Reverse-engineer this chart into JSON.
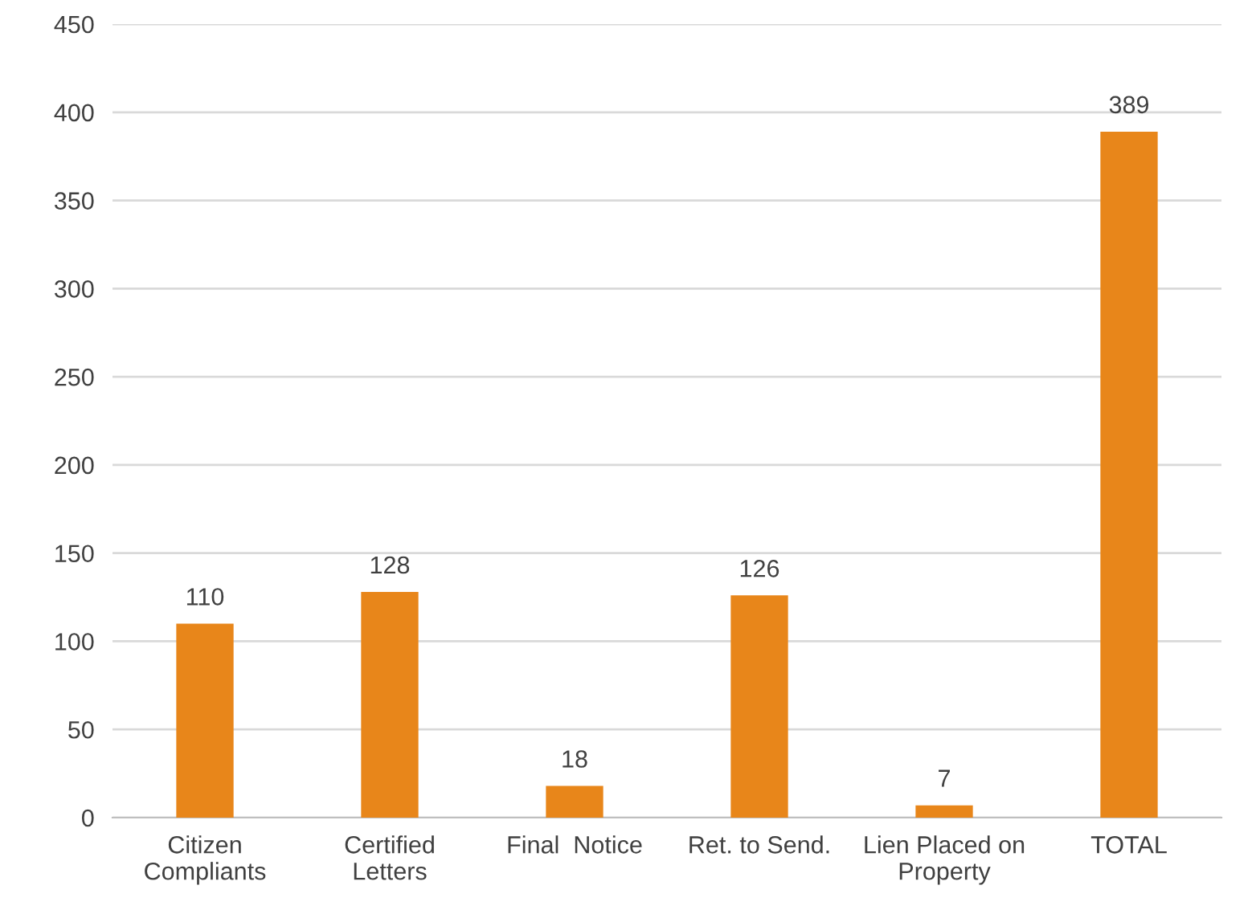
{
  "chart_data": {
    "type": "bar",
    "categories": [
      "Citizen\nCompliants",
      "Certified\nLetters",
      "Final  Notice",
      "Ret. to Send.",
      "Lien Placed on\nProperty",
      "TOTAL"
    ],
    "values": [
      110,
      128,
      18,
      126,
      7,
      389
    ],
    "color": "#e8861a",
    "ylim": [
      0,
      450
    ],
    "yticks": [
      0,
      50,
      100,
      150,
      200,
      250,
      300,
      350,
      400,
      450
    ],
    "grid": "y",
    "data_labels": true
  }
}
